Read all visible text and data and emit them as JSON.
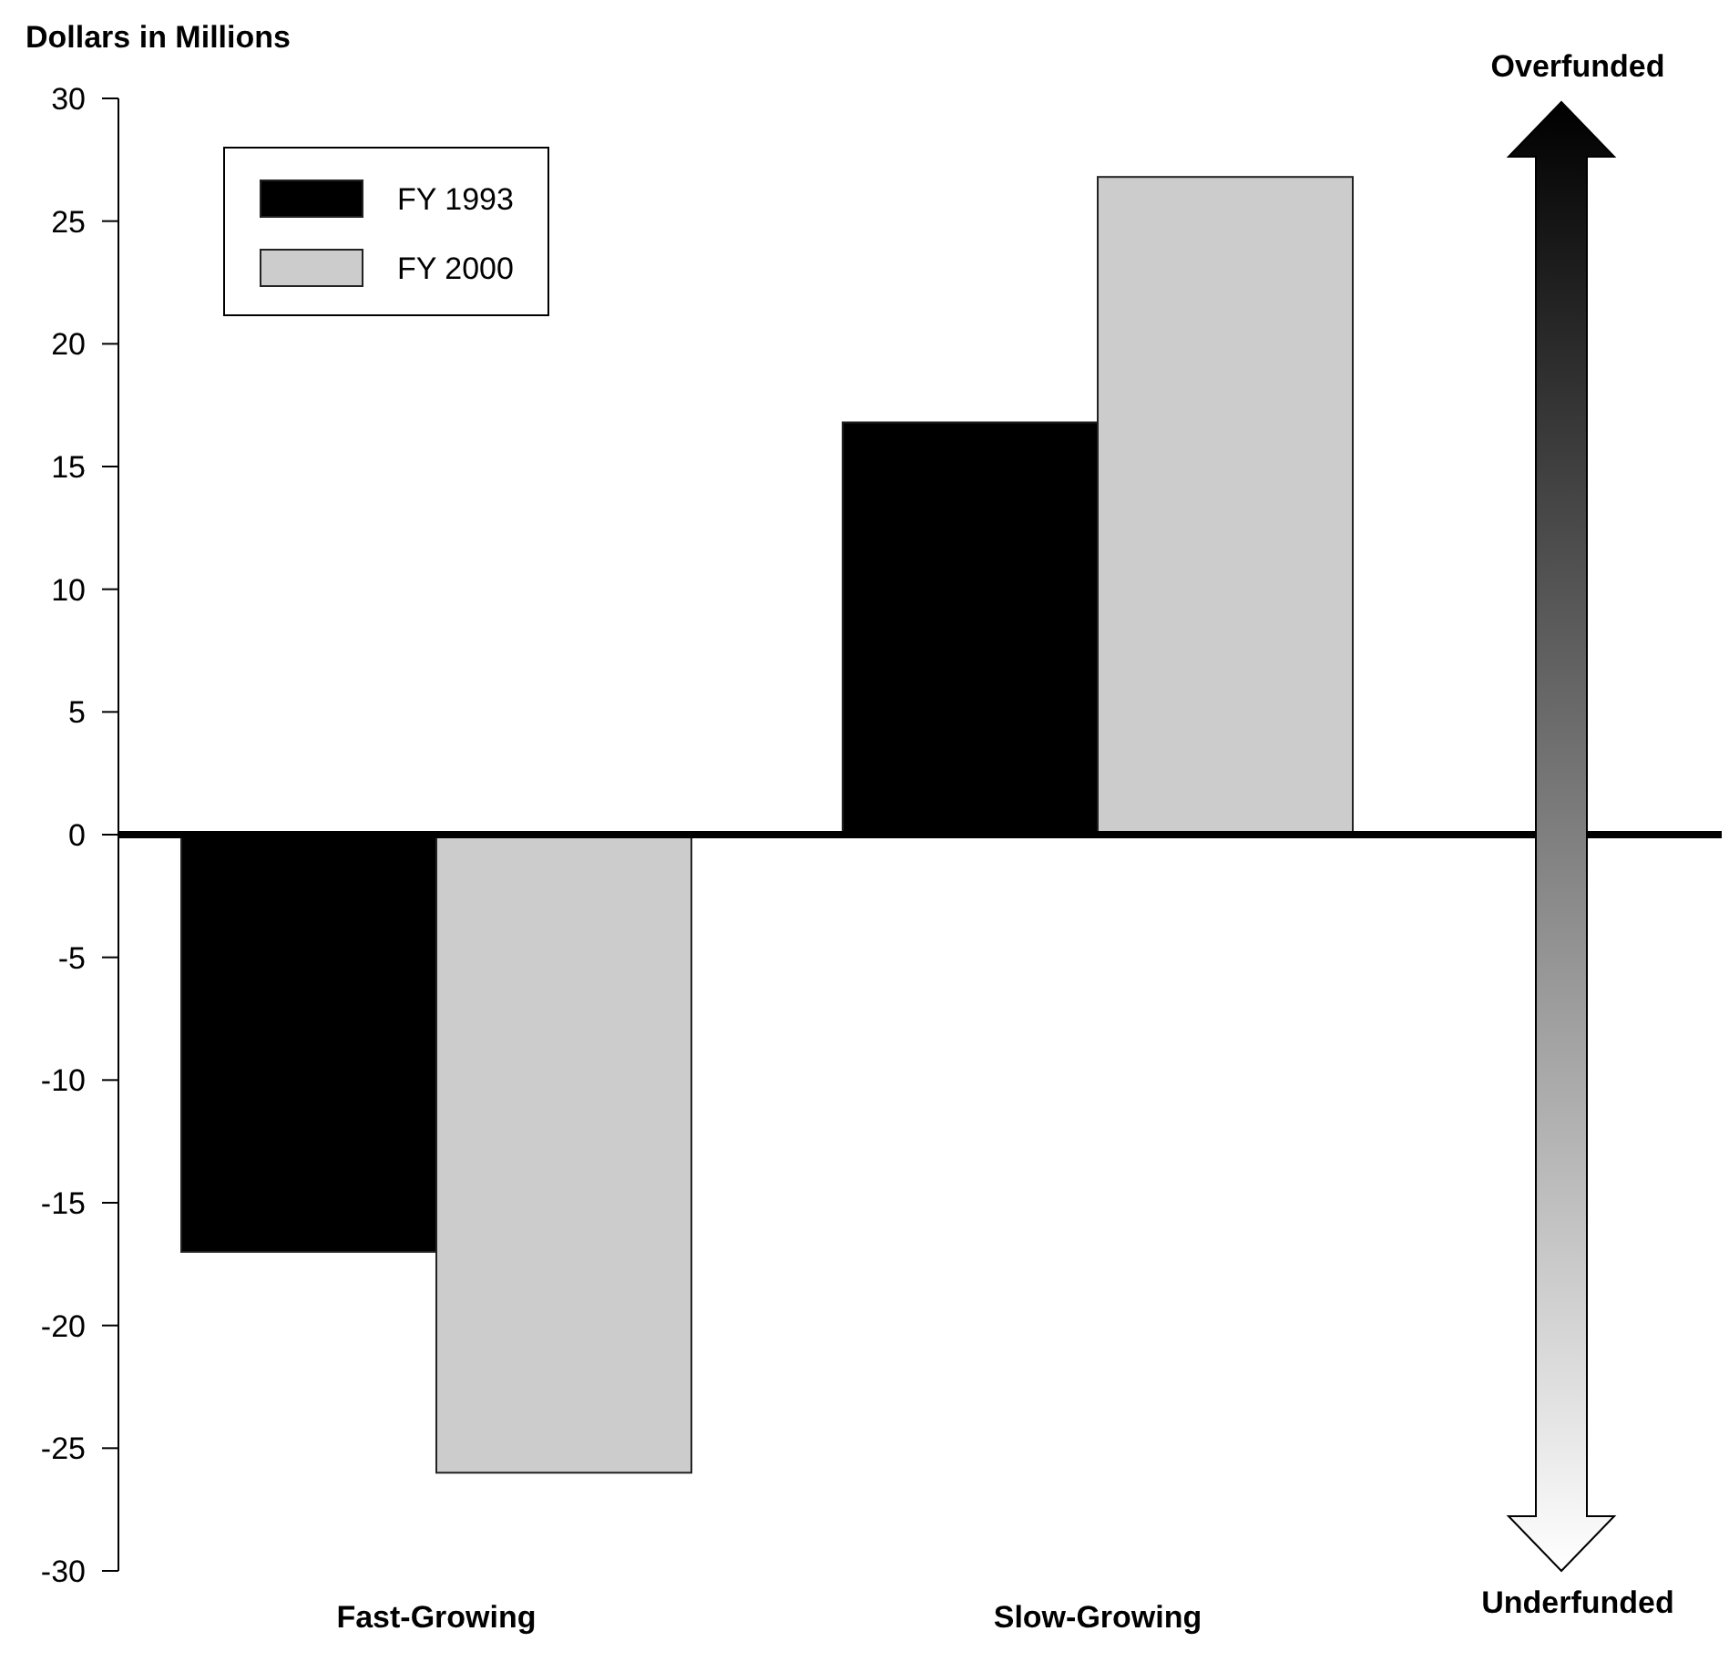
{
  "chart_data": {
    "type": "bar",
    "ylabel": "Dollars in Millions",
    "categories": [
      "Fast-Growing",
      "Slow-Growing"
    ],
    "series": [
      {
        "name": "FY 1993",
        "color": "#000000",
        "values": [
          -17,
          16.8
        ]
      },
      {
        "name": "FY 2000",
        "color": "#cccccc",
        "values": [
          -26,
          26.8
        ]
      }
    ],
    "ylim": [
      -30,
      30
    ],
    "yticks": [
      -30,
      -25,
      -20,
      -15,
      -10,
      -5,
      0,
      5,
      10,
      15,
      20,
      25,
      30
    ],
    "ref_lines": [
      {
        "axis": "y",
        "value": 0,
        "color": "#000000"
      }
    ],
    "legend": "top left",
    "annotations": [
      "Overfunded",
      "Underfunded"
    ]
  }
}
